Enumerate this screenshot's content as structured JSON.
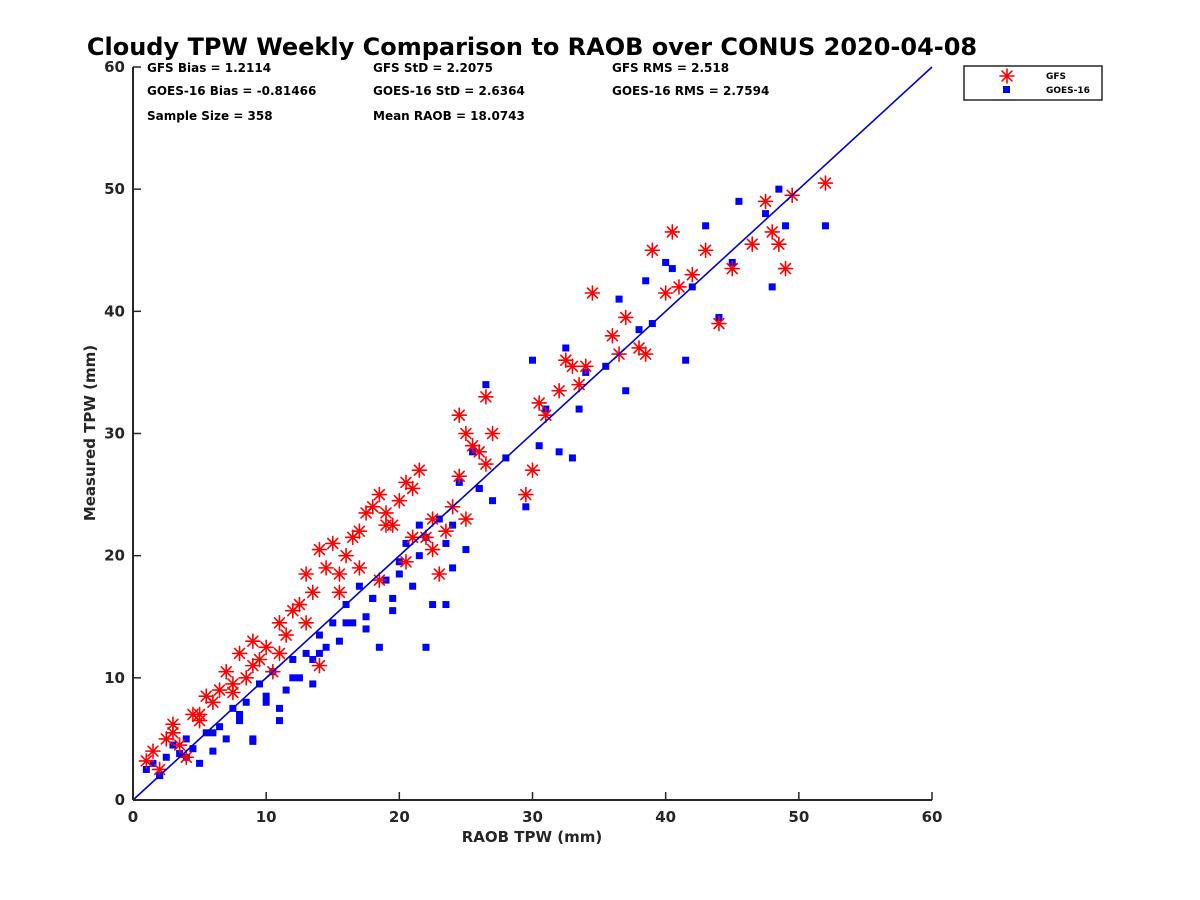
{
  "chart_data": {
    "type": "scatter",
    "title": "Cloudy TPW Weekly Comparison to RAOB over CONUS 2020-04-08",
    "xlabel": "RAOB TPW (mm)",
    "ylabel": "Measured TPW (mm)",
    "xlim": [
      0,
      60
    ],
    "ylim": [
      0,
      60
    ],
    "xticks": [
      "0",
      "10",
      "20",
      "30",
      "40",
      "50",
      "60"
    ],
    "yticks": [
      "0",
      "10",
      "20",
      "30",
      "40",
      "50",
      "60"
    ],
    "grid": false,
    "legend_position": "outside-top-right",
    "reference_line": {
      "type": "one-to-one",
      "x": [
        0,
        60
      ],
      "y": [
        0,
        60
      ],
      "color": "#0000cc"
    },
    "stats": {
      "gfs_bias": "GFS Bias = 1.2114",
      "goes_bias": "GOES-16 Bias = -0.81466",
      "sample_size": "Sample Size = 358",
      "gfs_std": "GFS StD = 2.2075",
      "goes_std": "GOES-16 StD = 2.6364",
      "mean_raob": "Mean RAOB = 18.0743",
      "gfs_rms": "GFS RMS = 2.518",
      "goes_rms": "GOES-16 RMS = 2.7594"
    },
    "series": [
      {
        "name": "GFS",
        "marker": "asterisk",
        "color": "#ff0000",
        "x": [
          1.0,
          1.5,
          2.0,
          2.5,
          3.0,
          3.5,
          4.0,
          4.5,
          5.0,
          5.5,
          6.0,
          6.5,
          7.0,
          7.5,
          8.0,
          8.5,
          9.0,
          9.5,
          10.0,
          10.5,
          11.0,
          11.5,
          12.0,
          12.5,
          13.0,
          13.5,
          14.0,
          14.5,
          15.0,
          15.5,
          16.0,
          16.5,
          17.0,
          17.5,
          18.0,
          18.5,
          19.0,
          19.5,
          20.0,
          20.5,
          21.0,
          21.5,
          22.0,
          22.5,
          23.0,
          23.5,
          24.0,
          24.5,
          25.0,
          25.5,
          26.0,
          26.5,
          27.0,
          29.5,
          30.0,
          30.5,
          31.0,
          32.0,
          32.5,
          33.0,
          33.5,
          34.0,
          34.5,
          36.0,
          36.5,
          37.0,
          38.0,
          38.5,
          39.0,
          40.0,
          40.5,
          41.0,
          42.0,
          43.0,
          44.0,
          45.0,
          46.5,
          47.5,
          48.0,
          48.5,
          49.0,
          49.5,
          52.0,
          3.0,
          5.0,
          7.5,
          9.0,
          11.0,
          13.0,
          15.5,
          17.0,
          19.0,
          21.0,
          22.5,
          24.5,
          26.5,
          14.0,
          18.5,
          20.5,
          25.0
        ],
        "y": [
          3.2,
          4.0,
          2.5,
          5.0,
          6.2,
          4.5,
          3.5,
          7.0,
          6.5,
          8.5,
          8.0,
          9.0,
          10.5,
          8.8,
          12.0,
          10.0,
          13.0,
          11.5,
          12.5,
          10.5,
          14.5,
          13.5,
          15.5,
          16.0,
          18.5,
          17.0,
          20.5,
          19.0,
          21.0,
          18.5,
          20.0,
          21.5,
          22.0,
          23.5,
          24.0,
          25.0,
          23.5,
          22.5,
          24.5,
          26.0,
          25.5,
          27.0,
          21.5,
          20.5,
          18.5,
          22.0,
          24.0,
          31.5,
          30.0,
          29.0,
          28.5,
          33.0,
          30.0,
          25.0,
          27.0,
          32.5,
          31.5,
          33.5,
          36.0,
          35.5,
          34.0,
          35.5,
          41.5,
          38.0,
          36.5,
          39.5,
          37.0,
          36.5,
          45.0,
          41.5,
          46.5,
          42.0,
          43.0,
          45.0,
          39.0,
          43.5,
          45.5,
          49.0,
          46.5,
          45.5,
          43.5,
          49.5,
          50.5,
          5.5,
          7.0,
          9.5,
          11.0,
          12.0,
          14.5,
          17.0,
          19.0,
          22.5,
          21.5,
          23.0,
          26.5,
          27.5,
          11.0,
          18.0,
          19.5,
          23.0
        ]
      },
      {
        "name": "GOES-16",
        "marker": "square",
        "color": "#0000ff",
        "x": [
          1.0,
          1.5,
          2.0,
          2.5,
          3.0,
          3.5,
          4.0,
          4.5,
          5.0,
          5.5,
          6.0,
          6.5,
          7.0,
          7.5,
          8.0,
          8.5,
          9.0,
          9.5,
          10.0,
          10.5,
          11.0,
          11.5,
          12.0,
          12.5,
          13.0,
          13.5,
          14.0,
          14.5,
          15.0,
          15.5,
          16.0,
          16.5,
          17.0,
          17.5,
          18.0,
          18.5,
          19.0,
          19.5,
          20.0,
          20.5,
          21.0,
          21.5,
          22.0,
          22.5,
          23.0,
          23.5,
          24.0,
          24.5,
          25.0,
          25.5,
          26.0,
          26.5,
          27.0,
          29.5,
          30.0,
          30.5,
          31.0,
          32.0,
          32.5,
          33.0,
          33.5,
          34.0,
          35.5,
          36.5,
          37.0,
          38.0,
          38.5,
          39.0,
          40.0,
          40.5,
          41.5,
          42.0,
          43.0,
          44.0,
          45.0,
          45.5,
          47.5,
          48.0,
          48.5,
          49.0,
          52.0,
          2.0,
          4.0,
          6.0,
          8.0,
          10.0,
          12.0,
          14.0,
          16.0,
          18.0,
          20.0,
          22.0,
          24.0,
          26.0,
          28.0,
          9.0,
          11.0,
          13.5,
          17.5,
          19.5,
          21.5,
          23.5
        ],
        "y": [
          2.5,
          3.0,
          2.0,
          3.5,
          4.5,
          3.8,
          5.0,
          4.2,
          3.0,
          5.5,
          4.0,
          6.0,
          5.0,
          7.5,
          6.5,
          8.0,
          5.0,
          9.5,
          8.0,
          10.5,
          7.5,
          9.0,
          11.5,
          10.0,
          12.0,
          9.5,
          13.5,
          12.5,
          14.5,
          13.0,
          16.0,
          14.5,
          17.5,
          15.0,
          16.5,
          12.5,
          18.0,
          16.5,
          19.5,
          21.0,
          17.5,
          20.0,
          12.5,
          16.0,
          23.0,
          21.0,
          19.0,
          26.0,
          20.5,
          28.5,
          25.5,
          34.0,
          24.5,
          24.0,
          36.0,
          29.0,
          32.0,
          28.5,
          37.0,
          28.0,
          32.0,
          35.0,
          35.5,
          41.0,
          33.5,
          38.5,
          42.5,
          39.0,
          44.0,
          43.5,
          36.0,
          42.0,
          47.0,
          39.5,
          44.0,
          49.0,
          48.0,
          42.0,
          50.0,
          47.0,
          47.0,
          2.0,
          3.5,
          5.5,
          7.0,
          8.5,
          10.0,
          12.0,
          14.5,
          16.5,
          18.5,
          21.5,
          22.5,
          25.5,
          28.0,
          4.8,
          6.5,
          11.5,
          14.0,
          15.5,
          22.5,
          16.0
        ]
      }
    ]
  }
}
